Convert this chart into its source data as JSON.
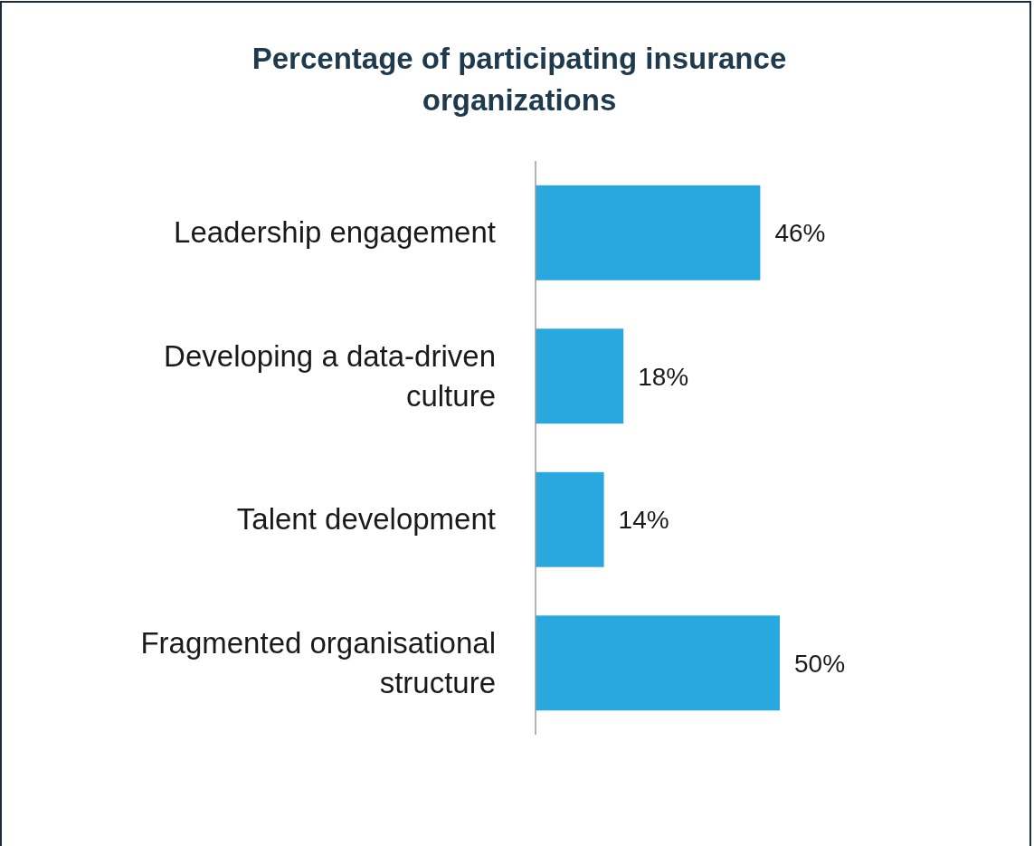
{
  "chart_data": {
    "type": "bar",
    "orientation": "horizontal",
    "title": "Percentage of participating insurance organizations",
    "categories": [
      "Leadership engagement",
      "Developing a data-driven culture",
      "Talent development",
      "Fragmented organisational structure"
    ],
    "values": [
      46,
      18,
      14,
      50
    ],
    "color": "#29a8e0",
    "value_labels": [
      "46%",
      "18%",
      "14%",
      "50%"
    ],
    "tick_labels": "y"
  }
}
